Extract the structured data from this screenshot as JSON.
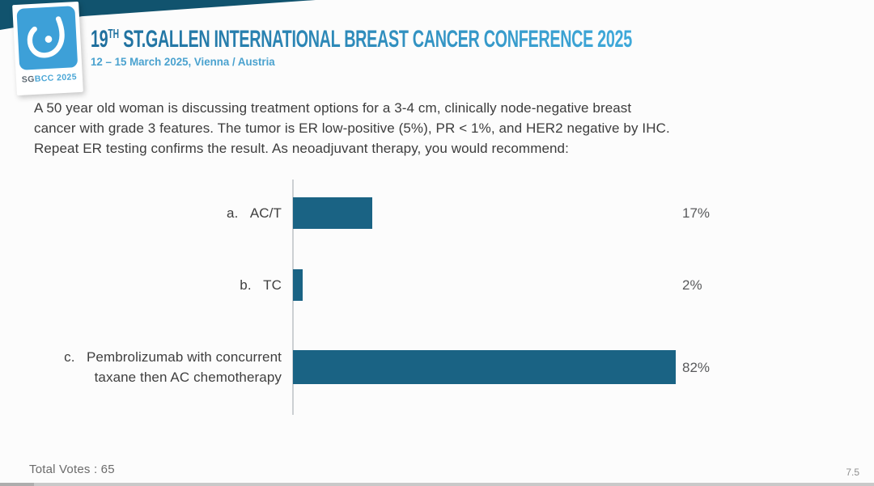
{
  "header": {
    "logo": {
      "badge_prefix": "SG",
      "badge_suffix": "BCC 2025",
      "badge_line": "SGBCC 2025"
    },
    "title_num": "19",
    "title_sup": "TH",
    "title_rest": " ST.GALLEN INTERNATIONAL BREAST CANCER CONFERENCE 2025",
    "subtitle": "12 – 15 March 2025, Vienna / Austria"
  },
  "question": {
    "lines": [
      "A 50 year old woman is discussing treatment options for a 3-4 cm, clinically node-negative breast",
      "cancer with grade 3 features. The tumor is ER low-positive (5%), PR < 1%, and HER2 negative by IHC.",
      "Repeat ER testing confirms the result. As neoadjuvant therapy, you would recommend:"
    ]
  },
  "chart_data": {
    "type": "bar",
    "orientation": "horizontal",
    "categories": [
      "a. AC/T",
      "b. TC",
      "c. Pembrolizumab with concurrent taxane then AC chemotherapy"
    ],
    "values": [
      17,
      2,
      82
    ],
    "value_labels": [
      "17%",
      "2%",
      "82%"
    ],
    "xlim": [
      0,
      100
    ],
    "grid": false,
    "legend": false,
    "bar_color": "#1a6384",
    "title": ""
  },
  "options": [
    {
      "lines": [
        "a.   AC/T"
      ],
      "pct": 17,
      "pct_label": "17%"
    },
    {
      "lines": [
        "b.   TC"
      ],
      "pct": 2,
      "pct_label": "2%"
    },
    {
      "lines": [
        "c.   Pembrolizumab with concurrent",
        "taxane then AC chemotherapy"
      ],
      "pct": 82,
      "pct_label": "82%"
    }
  ],
  "footer": {
    "total_votes": "Total Votes : 65",
    "slide_number": "7.5"
  },
  "colors": {
    "bar": "#1a6384",
    "ribbon": "#11536e",
    "logo_blue": "#3da0d8",
    "title_dark": "#1f6f9d",
    "title_light": "#3fa9da"
  }
}
